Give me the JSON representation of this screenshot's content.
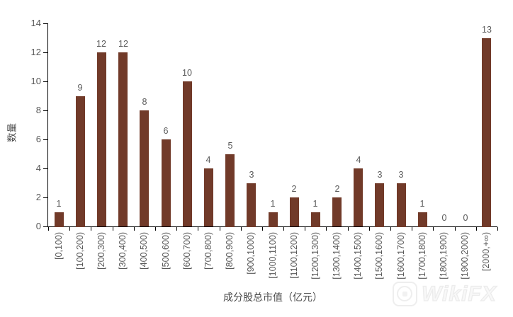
{
  "watermark": {
    "brand": "WikiFX"
  },
  "chart_data": {
    "type": "bar",
    "title": "",
    "categories": [
      "[0,100)",
      "[100,200)",
      "[200,300)",
      "[300,400)",
      "[400,500)",
      "[500,600)",
      "[600,700)",
      "[700,800)",
      "[800,900)",
      "[900,1000)",
      "[1000,1100)",
      "[1100,1200)",
      "[1200,1300)",
      "[1300,1400)",
      "[1400,1500)",
      "[1500,1600)",
      "[1600,1700)",
      "[1700,1800)",
      "[1800,1900)",
      "[1900,2000)",
      "[2000,+∞)"
    ],
    "values": [
      1,
      9,
      12,
      12,
      8,
      6,
      10,
      4,
      5,
      3,
      1,
      2,
      1,
      2,
      4,
      3,
      3,
      1,
      0,
      0,
      13
    ],
    "xlabel": "成分股总市值（亿元）",
    "ylabel": "数量",
    "ylim": [
      0,
      14
    ],
    "ytick_step": 2,
    "yticks": [
      0,
      2,
      4,
      6,
      8,
      10,
      12,
      14
    ],
    "grid": false,
    "value_labels_shown": true,
    "legend": "none",
    "bar_color": "#713A29",
    "label_color": "#595959",
    "axis_color": "#000000"
  }
}
